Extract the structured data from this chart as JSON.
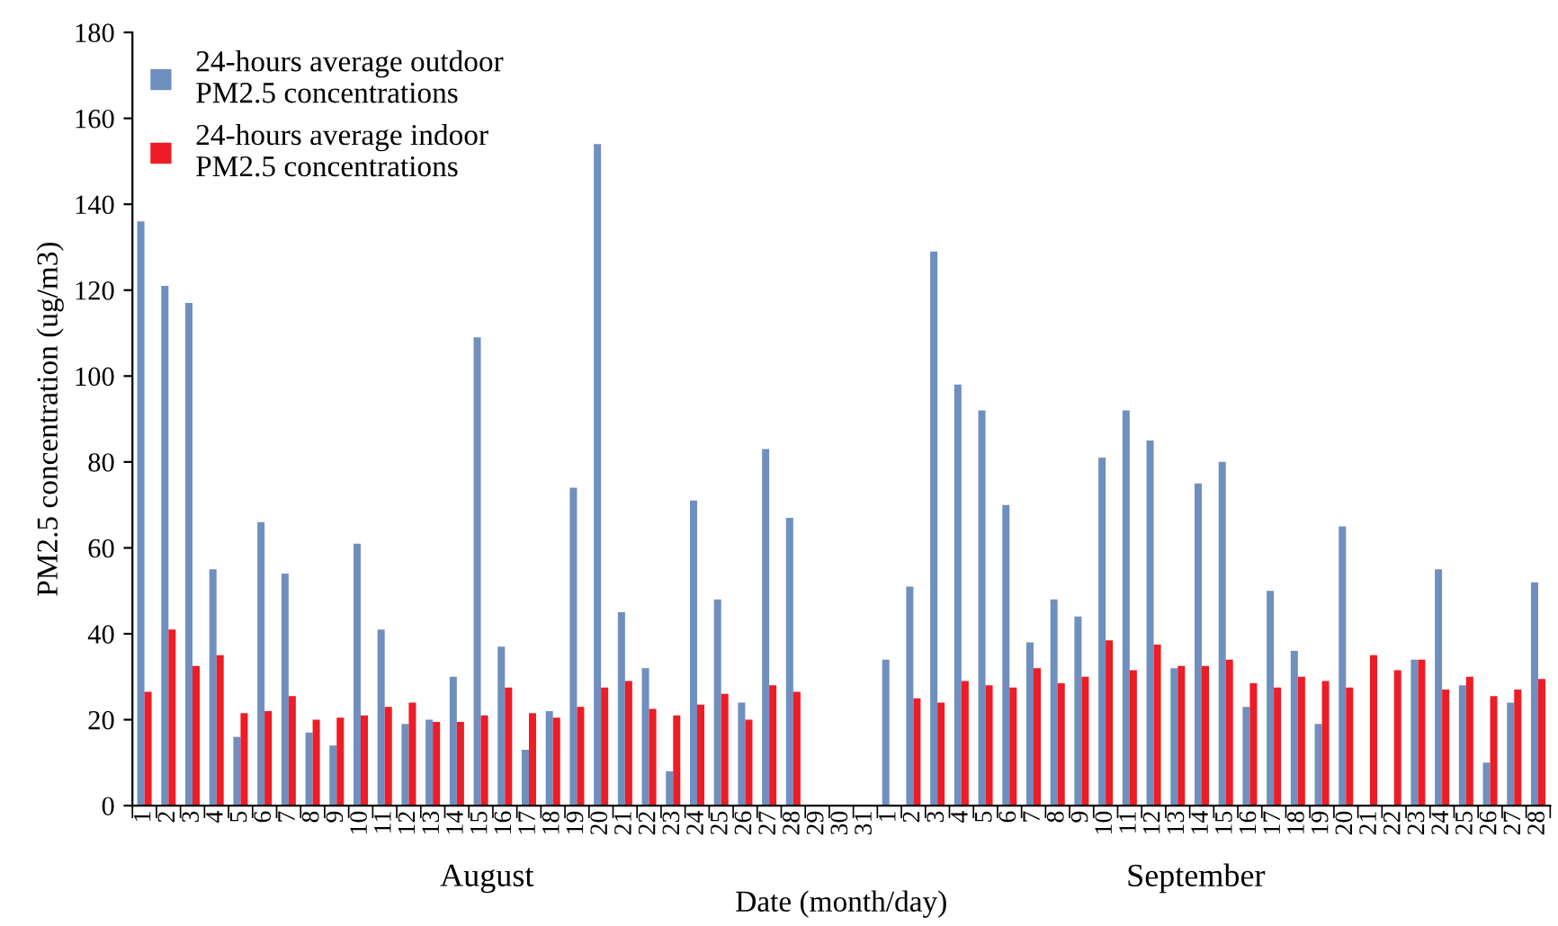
{
  "chart_data": {
    "type": "bar",
    "xlabel": "Date (month/day)",
    "ylabel": "PM2.5 concentration (ug/m3)",
    "categories": [
      "1",
      "2",
      "3",
      "4",
      "5",
      "6",
      "7",
      "8",
      "9",
      "10",
      "11",
      "12",
      "13",
      "14",
      "15",
      "16",
      "17",
      "18",
      "19",
      "20",
      "21",
      "22",
      "23",
      "24",
      "25",
      "26",
      "27",
      "28",
      "29",
      "30",
      "31",
      "1",
      "2",
      "3",
      "4",
      "5",
      "6",
      "7",
      "8",
      "9",
      "10",
      "11",
      "12",
      "13",
      "14",
      "15",
      "16",
      "17",
      "18",
      "19",
      "20",
      "21",
      "22",
      "23",
      "24",
      "25",
      "26",
      "27",
      "28"
    ],
    "series": [
      {
        "name": "24-hours average outdoor\nPM2.5 concentrations",
        "color": "#6f8fbf",
        "values": [
          136,
          121,
          117,
          55,
          16,
          66,
          54,
          17,
          14,
          61,
          41,
          19,
          20,
          30,
          109,
          37,
          13,
          22,
          74,
          154,
          45,
          32,
          8,
          71,
          48,
          24,
          83,
          67,
          null,
          null,
          null,
          34,
          51,
          129,
          98,
          92,
          70,
          38,
          48,
          44,
          81,
          92,
          85,
          32,
          75,
          80,
          23,
          50,
          36,
          19,
          65,
          null,
          null,
          34,
          55,
          28,
          10,
          24,
          52
        ]
      },
      {
        "name": "24-hours average indoor\nPM2.5 concentrations",
        "color": "#ee1c25",
        "values": [
          26.5,
          41,
          32.5,
          35,
          21.5,
          22,
          25.5,
          20,
          20.5,
          21,
          23,
          24,
          19.5,
          19.5,
          21,
          27.5,
          21.5,
          20.5,
          23,
          27.5,
          29,
          22.5,
          21,
          23.5,
          26,
          20,
          28,
          26.5,
          null,
          null,
          null,
          null,
          25,
          24,
          29,
          28,
          27.5,
          32,
          28.5,
          30,
          38.5,
          31.5,
          37.5,
          32.5,
          32.5,
          34,
          28.5,
          27.5,
          30,
          29,
          27.5,
          35,
          31.5,
          34,
          27,
          30,
          25.5,
          27,
          29.5
        ]
      }
    ],
    "ylim": [
      0,
      180
    ],
    "yticks": [
      0,
      20,
      40,
      60,
      80,
      100,
      120,
      140,
      160,
      180
    ],
    "grid": false,
    "legend": "top left",
    "annotations": [
      "August",
      "September"
    ]
  }
}
